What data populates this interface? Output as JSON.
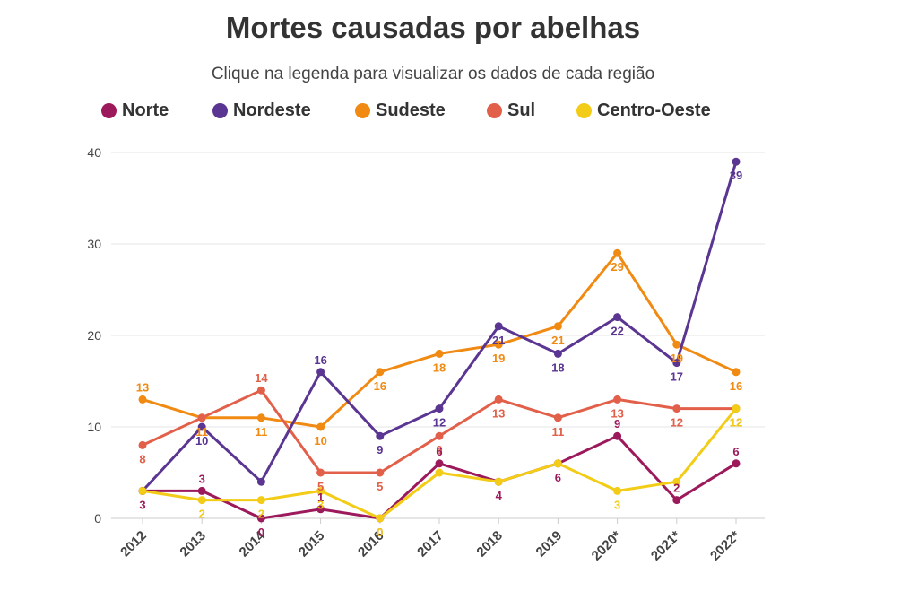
{
  "title": "Mortes causadas por abelhas",
  "subtitle": "Clique na legenda para visualizar os dados de cada região",
  "chart_data": {
    "type": "line",
    "title": "Mortes causadas por abelhas",
    "subtitle": "Clique na legenda para visualizar os dados de cada região",
    "x": [
      "2012",
      "2013",
      "2014",
      "2015",
      "2016",
      "2017",
      "2018",
      "2019",
      "2020*",
      "2021*",
      "2022*"
    ],
    "ylim": [
      0,
      40
    ],
    "yticks": [
      0,
      10,
      20,
      30,
      40
    ],
    "grid": true,
    "legend": "top",
    "series": [
      {
        "name": "Norte",
        "color": "#9c1a5c",
        "values": [
          3,
          3,
          0,
          1,
          0,
          6,
          4,
          6,
          9,
          2,
          6
        ]
      },
      {
        "name": "Nordeste",
        "color": "#5a3591",
        "values": [
          3,
          10,
          4,
          16,
          9,
          12,
          21,
          18,
          22,
          17,
          39
        ]
      },
      {
        "name": "Sudeste",
        "color": "#f08a12",
        "values": [
          13,
          11,
          11,
          10,
          16,
          18,
          19,
          21,
          29,
          19,
          16
        ]
      },
      {
        "name": "Sul",
        "color": "#e2604a",
        "values": [
          8,
          11,
          14,
          5,
          5,
          9,
          13,
          11,
          13,
          12,
          12
        ]
      },
      {
        "name": "Centro-Oeste",
        "color": "#f2cc16",
        "values": [
          3,
          2,
          2,
          3,
          0,
          5,
          4,
          6,
          3,
          4,
          12
        ]
      }
    ]
  }
}
